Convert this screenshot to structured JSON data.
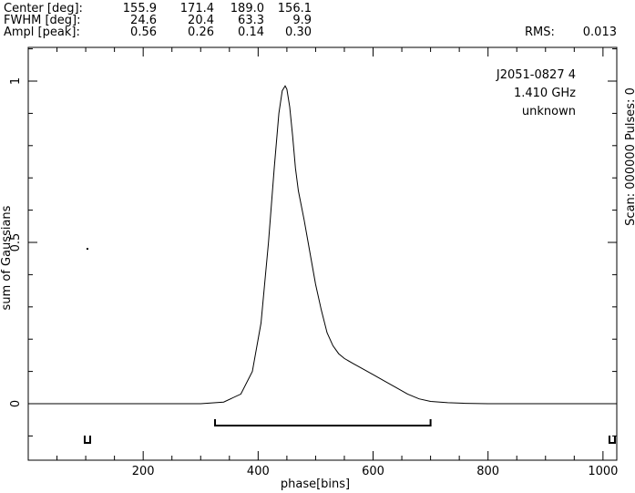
{
  "header": {
    "rows": [
      {
        "label": "Center [deg]:",
        "values": [
          "155.9",
          "171.4",
          "189.0",
          "156.1"
        ]
      },
      {
        "label": "FWHM  [deg]:",
        "values": [
          "24.6",
          "20.4",
          "63.3",
          "9.9"
        ]
      },
      {
        "label": "Ampl  [peak]:",
        "values": [
          "0.56",
          "0.26",
          "0.14",
          "0.30"
        ]
      }
    ],
    "rms_label": "RMS:",
    "rms_value": "0.013"
  },
  "chart_data": {
    "type": "line",
    "xlabel": "phase[bins]",
    "ylabel": "sum of Gaussians",
    "xlim": [
      0,
      1024
    ],
    "ylim": [
      -0.13,
      1.1
    ],
    "xticks": [
      200,
      400,
      600,
      800,
      1000
    ],
    "yticks": [
      0,
      0.5,
      1
    ],
    "ytick_labels": [
      "0",
      "0.5",
      "1"
    ],
    "annotations": [
      "J2051-0827 4",
      "1.410 GHz",
      "unknown"
    ],
    "right_label": "Scan: 000000   Pulses: 0",
    "series": [
      {
        "x": [
          0,
          300,
          340,
          370,
          390,
          405,
          418,
          428,
          436,
          442,
          447,
          450,
          455,
          460,
          465,
          470,
          480,
          490,
          500,
          510,
          520,
          530,
          540,
          550,
          565,
          580,
          600,
          620,
          640,
          660,
          680,
          700,
          730,
          760,
          800,
          900,
          1024
        ],
        "y": [
          0,
          0,
          0.005,
          0.03,
          0.1,
          0.25,
          0.5,
          0.73,
          0.9,
          0.97,
          0.985,
          0.975,
          0.92,
          0.83,
          0.73,
          0.66,
          0.57,
          0.47,
          0.37,
          0.29,
          0.22,
          0.18,
          0.155,
          0.14,
          0.125,
          0.11,
          0.09,
          0.07,
          0.05,
          0.03,
          0.015,
          0.007,
          0.003,
          0.001,
          0,
          0,
          0
        ]
      }
    ],
    "window_bar": [
      325,
      700
    ],
    "markers": [
      {
        "x": 103,
        "y": 0.48
      }
    ],
    "brackets": [
      103,
      1016
    ]
  }
}
